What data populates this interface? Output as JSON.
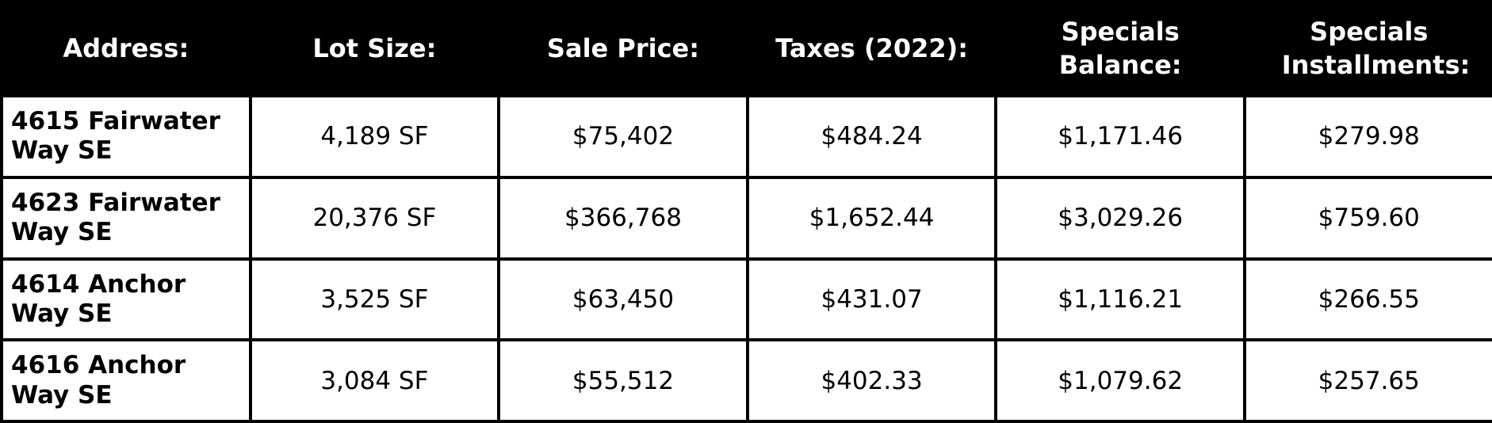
{
  "table": {
    "header": [
      "Address:",
      "Lot Size:",
      "Sale Price:",
      "Taxes (2022):",
      "Specials Balance:",
      "Specials Installments:"
    ],
    "rows": [
      [
        "4615 Fairwater Way SE",
        "4,189 SF",
        "$75,402",
        "$484.24",
        "$1,171.46",
        "$279.98"
      ],
      [
        "4623 Fairwater Way SE",
        "20,376 SF",
        "$366,768",
        "$1,652.44",
        "$3,029.26",
        "$759.60"
      ],
      [
        "4614 Anchor Way SE",
        "3,525 SF",
        "$63,450",
        "$431.07",
        "$1,116.21",
        "$266.55"
      ],
      [
        "4616 Anchor Way SE",
        "3,084 SF",
        "$55,512",
        "$402.33",
        "$1,079.62",
        "$257.65"
      ]
    ]
  }
}
